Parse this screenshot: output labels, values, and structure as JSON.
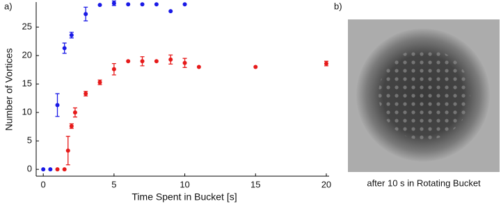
{
  "panel_labels": [
    "a)",
    "b)"
  ],
  "chart_data": {
    "type": "scatter",
    "x_label": "Time Spent in Bucket [s]",
    "y_label": "Number of Vortices",
    "xlim": [
      -0.5,
      20.2
    ],
    "ylim": [
      -1.2,
      29.4
    ],
    "xticks": [
      0,
      5,
      10,
      15,
      20
    ],
    "yticks": [
      0,
      5,
      10,
      15,
      20,
      25
    ],
    "series": [
      {
        "color": "#1a1ae6",
        "x": [
          0,
          0.5,
          1,
          1.5,
          2,
          3,
          4,
          5,
          6,
          7,
          8,
          9,
          10
        ],
        "values": [
          0,
          0,
          11.3,
          21.3,
          23.6,
          27.3,
          28.9,
          29.2,
          29,
          29,
          29,
          27.8,
          29
        ],
        "errors": [
          null,
          null,
          2,
          0.9,
          0.5,
          1.2,
          null,
          0.4,
          null,
          null,
          null,
          null,
          null
        ]
      },
      {
        "color": "#e61a1a",
        "x": [
          1,
          1.5,
          1.75,
          2,
          2.25,
          3,
          4,
          5,
          6,
          7,
          8,
          9,
          10,
          11,
          15,
          20
        ],
        "values": [
          0,
          0,
          3.3,
          7.6,
          10,
          13.3,
          15.3,
          17.6,
          19,
          19,
          19,
          19.3,
          18.7,
          18,
          18,
          18.6
        ],
        "errors": [
          null,
          null,
          2.5,
          0.4,
          0.8,
          0.4,
          0.4,
          1,
          null,
          0.8,
          null,
          0.8,
          0.8,
          null,
          null,
          0.4
        ]
      }
    ]
  },
  "image": {
    "caption": "after 10 s in Rotating Bucket"
  }
}
